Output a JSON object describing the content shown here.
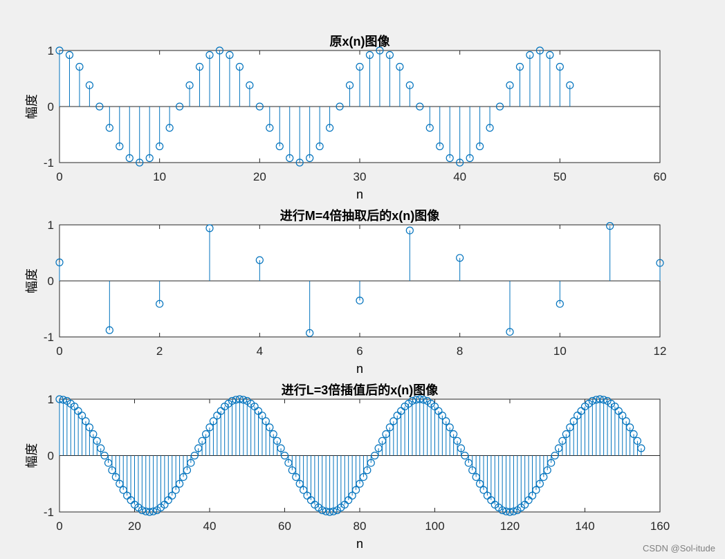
{
  "figure": {
    "watermark": "CSDN @Sol-itude",
    "stem_color": "#0072bd",
    "axes_color": "#262626",
    "plot_background": "#ffffff"
  },
  "chart_data": [
    {
      "type": "stem",
      "title": "原x(n)图像",
      "xlabel": "n",
      "ylabel": "幅度",
      "xlim": [
        0,
        60
      ],
      "ylim": [
        -1,
        1
      ],
      "xticks": [
        0,
        10,
        20,
        30,
        40,
        50,
        60
      ],
      "yticks": [
        -1,
        0,
        1
      ],
      "grid": false,
      "legend": "none",
      "x": [
        0,
        1,
        2,
        3,
        4,
        5,
        6,
        7,
        8,
        9,
        10,
        11,
        12,
        13,
        14,
        15,
        16,
        17,
        18,
        19,
        20,
        21,
        22,
        23,
        24,
        25,
        26,
        27,
        28,
        29,
        30,
        31,
        32,
        33,
        34,
        35,
        36,
        37,
        38,
        39,
        40,
        41,
        42,
        43,
        44,
        45,
        46,
        47,
        48,
        49,
        50,
        51
      ],
      "values": [
        1,
        0.92,
        0.71,
        0.38,
        0,
        -0.38,
        -0.71,
        -0.92,
        -1,
        -0.92,
        -0.71,
        -0.38,
        0,
        0.38,
        0.71,
        0.92,
        1,
        0.92,
        0.71,
        0.38,
        0,
        -0.38,
        -0.71,
        -0.92,
        -1,
        -0.92,
        -0.71,
        -0.38,
        0,
        0.38,
        0.71,
        0.92,
        1,
        0.92,
        0.71,
        0.38,
        0,
        -0.38,
        -0.71,
        -0.92,
        -1,
        -0.92,
        -0.71,
        -0.38,
        0,
        0.38,
        0.71,
        0.92,
        1,
        0.92,
        0.71,
        0.38
      ]
    },
    {
      "type": "stem",
      "title": "进行M=4倍抽取后的x(n)图像",
      "xlabel": "n",
      "ylabel": "幅度",
      "xlim": [
        0,
        12
      ],
      "ylim": [
        -1,
        1
      ],
      "xticks": [
        0,
        2,
        4,
        6,
        8,
        10,
        12
      ],
      "yticks": [
        -1,
        0,
        1
      ],
      "grid": false,
      "legend": "none",
      "x": [
        0,
        1,
        2,
        3,
        4,
        5,
        6,
        7,
        8,
        9,
        10,
        11,
        12
      ],
      "values": [
        0.33,
        -0.88,
        -0.41,
        0.94,
        0.37,
        -0.93,
        -0.35,
        0.9,
        0.41,
        -0.91,
        -0.41,
        0.98,
        0.32
      ]
    },
    {
      "type": "stem",
      "title": "进行L=3倍插值后的x(n)图像",
      "xlabel": "n",
      "ylabel": "幅度",
      "xlim": [
        0,
        160
      ],
      "ylim": [
        -1,
        1
      ],
      "xticks": [
        0,
        20,
        40,
        60,
        80,
        100,
        120,
        140,
        160
      ],
      "yticks": [
        -1,
        0,
        1
      ],
      "grid": false,
      "legend": "none",
      "x_start": 0,
      "x_step": 1,
      "values": [
        1,
        0.99,
        0.97,
        0.92,
        0.87,
        0.79,
        0.71,
        0.61,
        0.5,
        0.38,
        0.26,
        0.13,
        0,
        -0.13,
        -0.26,
        -0.38,
        -0.5,
        -0.61,
        -0.71,
        -0.79,
        -0.87,
        -0.92,
        -0.97,
        -0.99,
        -1,
        -0.99,
        -0.97,
        -0.92,
        -0.87,
        -0.79,
        -0.71,
        -0.61,
        -0.5,
        -0.38,
        -0.26,
        -0.13,
        0,
        0.13,
        0.26,
        0.38,
        0.5,
        0.61,
        0.71,
        0.79,
        0.87,
        0.92,
        0.97,
        0.99,
        1,
        0.99,
        0.97,
        0.92,
        0.87,
        0.79,
        0.71,
        0.61,
        0.5,
        0.38,
        0.26,
        0.13,
        0,
        -0.13,
        -0.26,
        -0.38,
        -0.5,
        -0.61,
        -0.71,
        -0.79,
        -0.87,
        -0.92,
        -0.97,
        -0.99,
        -1,
        -0.99,
        -0.97,
        -0.92,
        -0.87,
        -0.79,
        -0.71,
        -0.61,
        -0.5,
        -0.38,
        -0.26,
        -0.13,
        0,
        0.13,
        0.26,
        0.38,
        0.5,
        0.61,
        0.71,
        0.79,
        0.87,
        0.92,
        0.97,
        0.99,
        1,
        0.99,
        0.97,
        0.92,
        0.87,
        0.79,
        0.71,
        0.61,
        0.5,
        0.38,
        0.26,
        0.13,
        0,
        -0.13,
        -0.26,
        -0.38,
        -0.5,
        -0.61,
        -0.71,
        -0.79,
        -0.87,
        -0.92,
        -0.97,
        -0.99,
        -1,
        -0.99,
        -0.97,
        -0.92,
        -0.87,
        -0.79,
        -0.71,
        -0.61,
        -0.5,
        -0.38,
        -0.26,
        -0.13,
        0,
        0.13,
        0.26,
        0.38,
        0.5,
        0.61,
        0.71,
        0.79,
        0.87,
        0.92,
        0.97,
        0.99,
        1,
        0.99,
        0.97,
        0.92,
        0.87,
        0.79,
        0.71,
        0.61,
        0.5,
        0.38,
        0.26,
        0.13
      ]
    }
  ]
}
